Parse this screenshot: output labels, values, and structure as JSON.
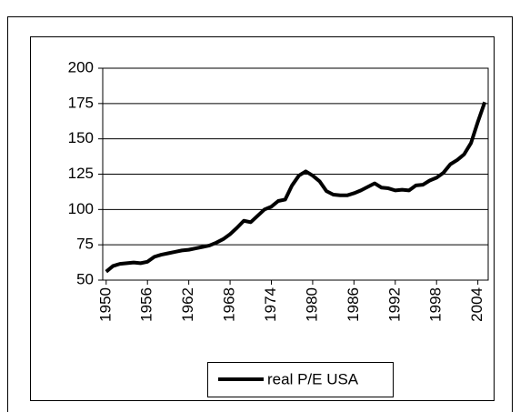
{
  "chart_data": {
    "type": "line",
    "x": [
      1950,
      1951,
      1952,
      1953,
      1954,
      1955,
      1956,
      1957,
      1958,
      1959,
      1960,
      1961,
      1962,
      1963,
      1964,
      1965,
      1966,
      1967,
      1968,
      1969,
      1970,
      1971,
      1972,
      1973,
      1974,
      1975,
      1976,
      1977,
      1978,
      1979,
      1980,
      1981,
      1982,
      1983,
      1984,
      1985,
      1986,
      1987,
      1988,
      1989,
      1990,
      1991,
      1992,
      1993,
      1994,
      1995,
      1996,
      1997,
      1998,
      1999,
      2000,
      2001,
      2002,
      2003,
      2004,
      2005
    ],
    "series": [
      {
        "name": "real P/E USA",
        "color": "#000000",
        "values": [
          56,
          60,
          61.5,
          62,
          62.5,
          62,
          63,
          66.5,
          68,
          69,
          70,
          71,
          71.5,
          72.5,
          73.5,
          74.5,
          76.5,
          79,
          82.5,
          87,
          92,
          91,
          95.5,
          100,
          102,
          106,
          107,
          117,
          124,
          127,
          124,
          120,
          113,
          110.5,
          110,
          110,
          111.5,
          113.5,
          116,
          118.5,
          115.5,
          115,
          113.5,
          114,
          113.5,
          117,
          117.5,
          120.5,
          122.5,
          126,
          132,
          135,
          139,
          147,
          162,
          176
        ]
      }
    ],
    "xlim": [
      1949.5,
      2005.5
    ],
    "xticks": [
      1950,
      1956,
      1962,
      1968,
      1974,
      1980,
      1986,
      1992,
      1998,
      2004
    ],
    "ylim": [
      50,
      200
    ],
    "yticks": [
      50,
      75,
      100,
      125,
      150,
      175,
      200
    ],
    "grid": true,
    "legend": "bottom"
  }
}
